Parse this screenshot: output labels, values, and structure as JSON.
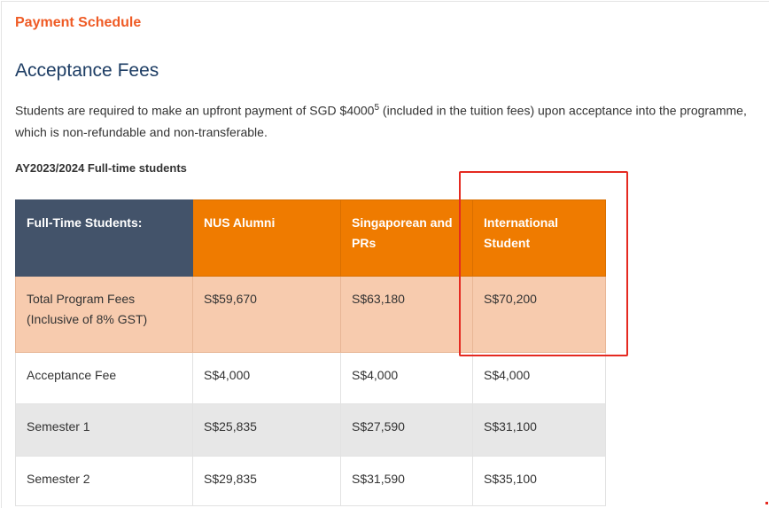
{
  "section_label": "Payment Schedule",
  "heading": "Acceptance Fees",
  "paragraph": {
    "text_before": "Students are required to make an upfront payment of SGD $4000",
    "footnote": "5",
    "text_after": " (included in the tuition fees) upon acceptance into the programme,",
    "line2": "which is non-refundable and non-transferable."
  },
  "subheading": "AY2023/2024 Full-time students",
  "table": {
    "headers": [
      "Full-Time Students:",
      "NUS Alumni",
      "Singaporean and PRs",
      "International Student"
    ],
    "rows": [
      [
        "Total Program Fees (Inclusive of 8% GST)",
        "S$59,670",
        "S$63,180",
        "S$70,200"
      ],
      [
        "Acceptance Fee",
        "S$4,000",
        "S$4,000",
        "S$4,000"
      ],
      [
        "Semester 1",
        "S$25,835",
        "S$27,590",
        "S$31,100"
      ],
      [
        "Semester 2",
        "S$29,835",
        "S$31,590",
        "S$35,100"
      ]
    ]
  },
  "colors": {
    "accent": "#ef5b25",
    "header_orange": "#ef7b00",
    "header_slate": "#43536a",
    "highlight_row": "#f7cbae",
    "annotation_box": "#e52a21"
  }
}
